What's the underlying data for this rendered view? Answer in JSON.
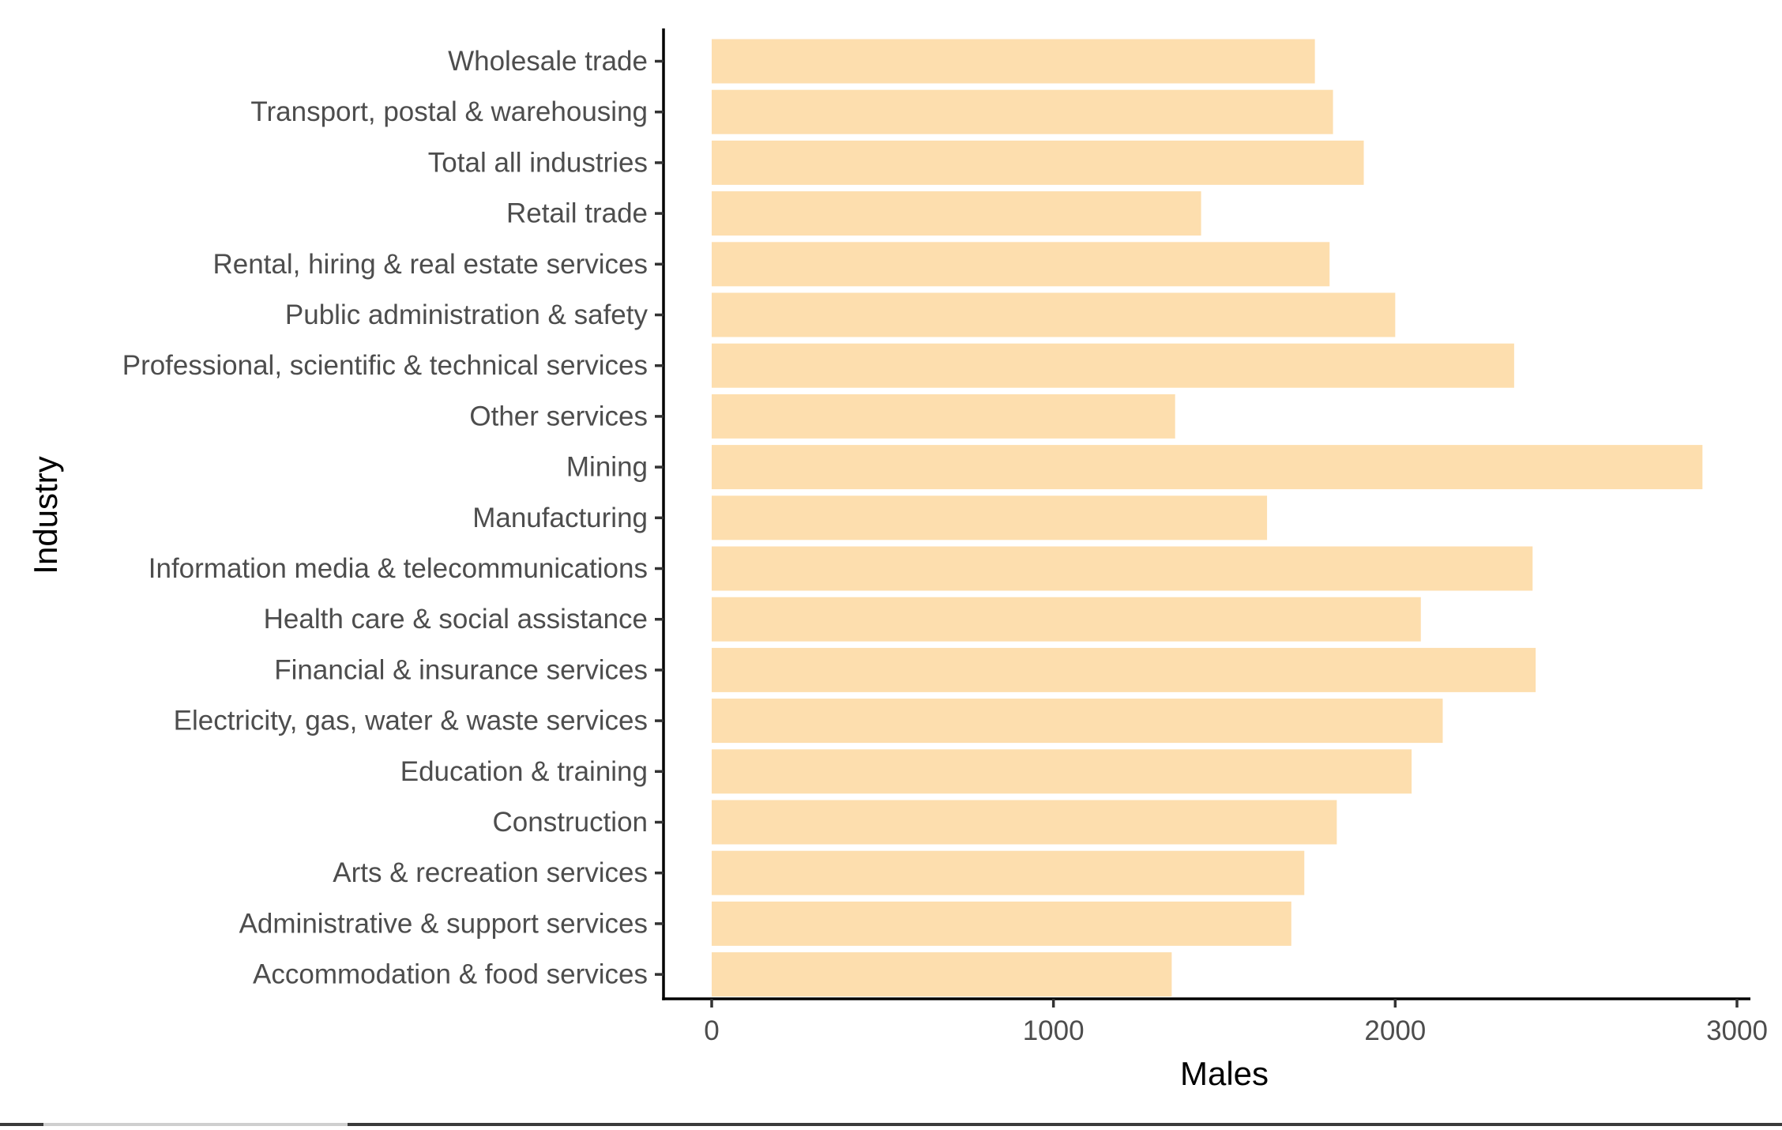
{
  "chart_data": {
    "type": "bar",
    "orientation": "horizontal",
    "xlabel": "Males",
    "ylabel": "Industry",
    "xlim": [
      0,
      3000
    ],
    "xticks": [
      0,
      1000,
      2000,
      3000
    ],
    "xtick_labels": [
      "0",
      "1000",
      "2000",
      "3000"
    ],
    "grid": false,
    "legend": "none",
    "bar_color": "#fddeae",
    "categories": [
      "Wholesale trade",
      "Transport, postal & warehousing",
      "Total all industries",
      "Retail trade",
      "Rental, hiring & real estate services",
      "Public administration & safety",
      "Professional, scientific & technical services",
      "Other services",
      "Mining",
      "Manufacturing",
      "Information media & telecommunications",
      "Health care & social assistance",
      "Financial & insurance services",
      "Electricity, gas, water & waste services",
      "Education & training",
      "Construction",
      "Arts & recreation services",
      "Administrative & support services",
      "Accommodation & food services"
    ],
    "values": [
      1765,
      1818,
      1908,
      1432,
      1808,
      2000,
      2348,
      1356,
      2899,
      1625,
      2402,
      2075,
      2411,
      2139,
      2048,
      1829,
      1734,
      1696,
      1346
    ]
  }
}
